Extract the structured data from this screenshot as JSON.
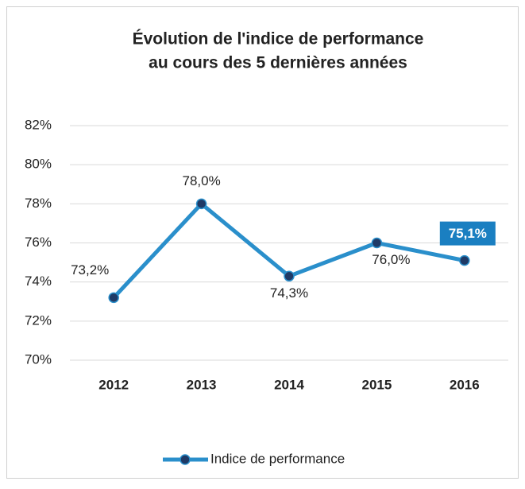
{
  "chart_data": {
    "type": "line",
    "title": [
      "Évolution de l'indice de performance",
      "au cours des 5 dernières années"
    ],
    "categories": [
      "2012",
      "2013",
      "2014",
      "2015",
      "2016"
    ],
    "series": [
      {
        "name": "Indice de performance",
        "color": "#2a8fcb",
        "marker_color": "#1f3a66",
        "values": [
          73.2,
          78.0,
          74.3,
          76.0,
          75.1
        ],
        "value_labels": [
          "73,2%",
          "78,0%",
          "74,3%",
          "76,0%",
          "75,1%"
        ],
        "highlight": [
          false,
          false,
          false,
          false,
          true
        ],
        "highlight_color": "#1a7fc1"
      }
    ],
    "ylim": [
      70,
      82
    ],
    "yticks": [
      {
        "value": 70,
        "label": "70%"
      },
      {
        "value": 72,
        "label": "72%"
      },
      {
        "value": 74,
        "label": "74%"
      },
      {
        "value": 76,
        "label": "76%"
      },
      {
        "value": 78,
        "label": "78%"
      },
      {
        "value": 80,
        "label": "80%"
      },
      {
        "value": 82,
        "label": "82%"
      }
    ],
    "grid": true,
    "legend": "bottom"
  }
}
